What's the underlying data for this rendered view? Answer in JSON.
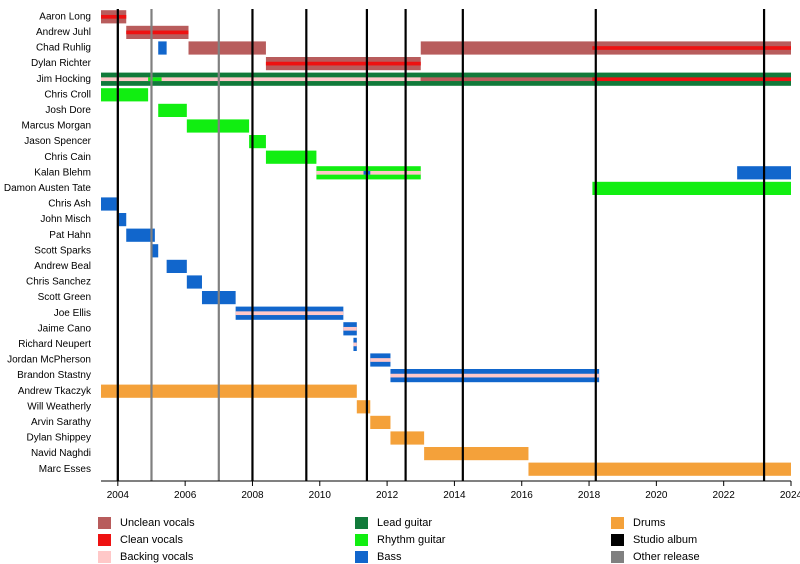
{
  "chart_data": {
    "type": "timeline",
    "x_range": [
      2003.5,
      2024.0
    ],
    "x_ticks": [
      "2004",
      "2006",
      "2008",
      "2010",
      "2012",
      "2014",
      "2016",
      "2018",
      "2020",
      "2022",
      "2024"
    ],
    "members": [
      "Aaron Long",
      "Andrew Juhl",
      "Chad Ruhlig",
      "Dylan Richter",
      "Jim Hocking",
      "Chris Croll",
      "Josh Dore",
      "Marcus Morgan",
      "Jason Spencer",
      "Chris Cain",
      "Kalan Blehm",
      "Damon Austen Tate",
      "Chris Ash",
      "John Misch",
      "Pat Hahn",
      "Scott Sparks",
      "Andrew Beal",
      "Chris Sanchez",
      "Scott Green",
      "Joe Ellis",
      "Jaime Cano",
      "Richard Neupert",
      "Jordan McPherson",
      "Brandon Stastny",
      "Andrew Tkaczyk",
      "Will Weatherly",
      "Arvin Sarathy",
      "Dylan Shippey",
      "Navid Naghdi",
      "Marc Esses"
    ],
    "studio_albums": [
      2004.0,
      2008.0,
      2009.6,
      2011.4,
      2012.55,
      2014.25,
      2018.2,
      2023.2
    ],
    "other_releases": [
      2004.0,
      2005.0,
      2007.0
    ],
    "bars": [
      {
        "row": 0,
        "start": 2003.5,
        "end": 2004.25,
        "role": "unclean"
      },
      {
        "row": 0,
        "start": 2003.5,
        "end": 2004.25,
        "role": "clean",
        "thin": true
      },
      {
        "row": 1,
        "start": 2004.25,
        "end": 2006.1,
        "role": "unclean"
      },
      {
        "row": 1,
        "start": 2004.25,
        "end": 2006.1,
        "role": "clean",
        "thin": true
      },
      {
        "row": 2,
        "start": 2005.2,
        "end": 2005.45,
        "role": "bass"
      },
      {
        "row": 2,
        "start": 2006.1,
        "end": 2008.4,
        "role": "unclean"
      },
      {
        "row": 2,
        "start": 2013.0,
        "end": 2024.0,
        "role": "unclean"
      },
      {
        "row": 2,
        "start": 2018.1,
        "end": 2024.0,
        "role": "clean",
        "thin": true
      },
      {
        "row": 3,
        "start": 2008.4,
        "end": 2013.0,
        "role": "unclean"
      },
      {
        "row": 3,
        "start": 2008.4,
        "end": 2013.0,
        "role": "clean",
        "thin": true
      },
      {
        "row": 4,
        "start": 2003.5,
        "end": 2024.0,
        "role": "lead"
      },
      {
        "row": 4,
        "start": 2003.5,
        "end": 2013.0,
        "role": "backing",
        "thin": true
      },
      {
        "row": 4,
        "start": 2004.9,
        "end": 2005.3,
        "role": "rhythm",
        "thin": true
      },
      {
        "row": 4,
        "start": 2013.0,
        "end": 2018.1,
        "role": "unclean",
        "thin": true
      },
      {
        "row": 4,
        "start": 2018.1,
        "end": 2024.0,
        "role": "clean",
        "thin": true
      },
      {
        "row": 5,
        "start": 2003.5,
        "end": 2004.9,
        "role": "rhythm"
      },
      {
        "row": 6,
        "start": 2005.2,
        "end": 2006.05,
        "role": "rhythm"
      },
      {
        "row": 7,
        "start": 2006.05,
        "end": 2007.9,
        "role": "rhythm"
      },
      {
        "row": 8,
        "start": 2007.9,
        "end": 2008.4,
        "role": "rhythm"
      },
      {
        "row": 9,
        "start": 2008.4,
        "end": 2009.9,
        "role": "rhythm"
      },
      {
        "row": 10,
        "start": 2009.9,
        "end": 2013.0,
        "role": "rhythm"
      },
      {
        "row": 10,
        "start": 2009.9,
        "end": 2013.0,
        "role": "backing",
        "thin": true
      },
      {
        "row": 10,
        "start": 2011.3,
        "end": 2011.5,
        "role": "bass",
        "thin": true
      },
      {
        "row": 10,
        "start": 2022.4,
        "end": 2024.0,
        "role": "bass"
      },
      {
        "row": 11,
        "start": 2018.1,
        "end": 2024.0,
        "role": "rhythm"
      },
      {
        "row": 12,
        "start": 2003.5,
        "end": 2004.0,
        "role": "bass"
      },
      {
        "row": 13,
        "start": 2004.0,
        "end": 2004.25,
        "role": "bass"
      },
      {
        "row": 14,
        "start": 2004.25,
        "end": 2005.1,
        "role": "bass"
      },
      {
        "row": 15,
        "start": 2005.0,
        "end": 2005.2,
        "role": "bass"
      },
      {
        "row": 16,
        "start": 2005.45,
        "end": 2006.05,
        "role": "bass"
      },
      {
        "row": 17,
        "start": 2006.05,
        "end": 2006.5,
        "role": "bass"
      },
      {
        "row": 18,
        "start": 2006.5,
        "end": 2007.5,
        "role": "bass"
      },
      {
        "row": 19,
        "start": 2007.5,
        "end": 2010.7,
        "role": "bass"
      },
      {
        "row": 19,
        "start": 2007.5,
        "end": 2010.7,
        "role": "backing",
        "thin": true
      },
      {
        "row": 20,
        "start": 2010.7,
        "end": 2011.1,
        "role": "bass"
      },
      {
        "row": 20,
        "start": 2010.7,
        "end": 2011.1,
        "role": "backing",
        "thin": true
      },
      {
        "row": 21,
        "start": 2011.0,
        "end": 2011.1,
        "role": "bass"
      },
      {
        "row": 21,
        "start": 2011.0,
        "end": 2011.1,
        "role": "backing",
        "thin": true
      },
      {
        "row": 22,
        "start": 2011.5,
        "end": 2012.1,
        "role": "bass"
      },
      {
        "row": 22,
        "start": 2011.5,
        "end": 2012.1,
        "role": "backing",
        "thin": true
      },
      {
        "row": 23,
        "start": 2012.1,
        "end": 2018.3,
        "role": "bass"
      },
      {
        "row": 23,
        "start": 2012.1,
        "end": 2018.3,
        "role": "backing",
        "thin": true
      },
      {
        "row": 24,
        "start": 2003.5,
        "end": 2011.1,
        "role": "drums"
      },
      {
        "row": 25,
        "start": 2011.1,
        "end": 2011.5,
        "role": "drums"
      },
      {
        "row": 26,
        "start": 2011.5,
        "end": 2012.1,
        "role": "drums"
      },
      {
        "row": 27,
        "start": 2012.1,
        "end": 2013.1,
        "role": "drums"
      },
      {
        "row": 28,
        "start": 2013.1,
        "end": 2016.2,
        "role": "drums"
      },
      {
        "row": 29,
        "start": 2016.2,
        "end": 2024.0,
        "role": "drums"
      }
    ],
    "legend": [
      {
        "key": "unclean",
        "label": "Unclean vocals",
        "color": "#b85c5c",
        "column": 0,
        "line": 0
      },
      {
        "key": "clean",
        "label": "Clean vocals",
        "color": "#ee1111",
        "column": 0,
        "line": 1
      },
      {
        "key": "backing",
        "label": "Backing vocals",
        "color": "#ffc8c8",
        "column": 0,
        "line": 2
      },
      {
        "key": "lead",
        "label": "Lead guitar",
        "color": "#117a3a",
        "column": 1,
        "line": 0
      },
      {
        "key": "rhythm",
        "label": "Rhythm guitar",
        "color": "#11ee11",
        "column": 1,
        "line": 1
      },
      {
        "key": "bass",
        "label": "Bass",
        "color": "#1166cc",
        "column": 1,
        "line": 2
      },
      {
        "key": "drums",
        "label": "Drums",
        "color": "#f4a13a",
        "column": 2,
        "line": 0
      },
      {
        "key": "studio",
        "label": "Studio album",
        "color": "#000000",
        "column": 2,
        "line": 1
      },
      {
        "key": "other",
        "label": "Other release",
        "color": "#808080",
        "column": 2,
        "line": 2
      }
    ]
  }
}
